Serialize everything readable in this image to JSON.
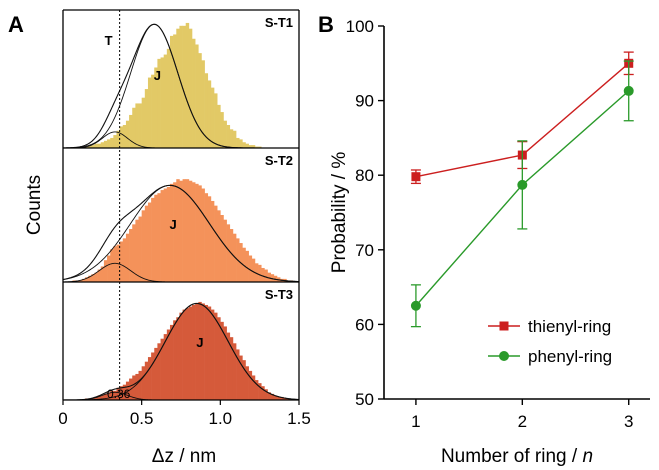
{
  "chart_data": [
    {
      "panel": "A",
      "type": "histogram",
      "xlabel": "Δz / nm",
      "ylabel": "Counts",
      "xlim": [
        0,
        1.5
      ],
      "xticks": [
        "0",
        "0.5",
        "1.0",
        "1.5"
      ],
      "vline": {
        "x": 0.36,
        "label": "0.36",
        "top_label": "T"
      },
      "gaussian_label": "J",
      "colors": {
        "axis": "#000000",
        "curve": "#111111"
      },
      "subpanels": [
        {
          "label": "S-T1",
          "color": "#E2C966",
          "bin_width": 0.02,
          "hist_start": 0.0,
          "counts": [
            0,
            0,
            0,
            0,
            0,
            1,
            1,
            1,
            2,
            2,
            3,
            3,
            4,
            5,
            6,
            7,
            9,
            12,
            15,
            16,
            19,
            23,
            28,
            31,
            31,
            35,
            41,
            49,
            51,
            56,
            62,
            63,
            65,
            69,
            78,
            79,
            83,
            85,
            85,
            87,
            83,
            76,
            72,
            66,
            61,
            52,
            47,
            42,
            38,
            30,
            25,
            19,
            16,
            13,
            12,
            7,
            6,
            4,
            3,
            2,
            2,
            1,
            1,
            0,
            0,
            0,
            0,
            0,
            0,
            0,
            0,
            0,
            0,
            0,
            0
          ],
          "gaussians": [
            {
              "amplitude": 11.2,
              "mu": 0.33,
              "sigma": 0.08
            },
            {
              "amplitude": 86.0,
              "mu": 0.58,
              "sigma": 0.15
            }
          ],
          "ymax": 96
        },
        {
          "label": "S-T2",
          "color": "#F4925A",
          "bin_width": 0.02,
          "hist_start": 0.0,
          "counts": [
            0,
            0,
            0,
            1,
            1,
            1,
            2,
            3,
            4,
            5,
            6,
            8,
            10,
            14,
            17,
            21,
            23,
            24,
            26,
            28,
            31,
            34,
            37,
            40,
            42,
            46,
            49,
            51,
            54,
            56,
            57,
            59,
            60,
            61,
            63,
            64,
            66,
            65,
            66,
            66,
            65,
            64,
            63,
            62,
            60,
            57,
            55,
            52,
            49,
            46,
            43,
            40,
            37,
            34,
            31,
            28,
            25,
            22,
            20,
            17,
            15,
            12,
            11,
            9,
            8,
            6,
            5,
            4,
            3,
            2,
            2,
            1,
            1,
            0,
            0
          ],
          "gaussians": [
            {
              "amplitude": 12.0,
              "mu": 0.33,
              "sigma": 0.1
            },
            {
              "amplitude": 62.0,
              "mu": 0.68,
              "sigma": 0.25
            }
          ],
          "ymax": 86
        },
        {
          "label": "S-T3",
          "color": "#D55A3A",
          "bin_width": 0.02,
          "hist_start": 0.1,
          "counts": [
            0,
            0,
            1,
            1,
            1,
            2,
            3,
            3,
            4,
            5,
            6,
            6,
            8,
            9,
            10,
            12,
            14,
            16,
            17,
            19,
            22,
            25,
            28,
            31,
            34,
            37,
            40,
            43,
            46,
            49,
            52,
            54,
            57,
            59,
            60,
            61,
            62,
            63,
            64,
            63,
            62,
            61,
            59,
            57,
            54,
            51,
            48,
            44,
            41,
            37,
            33,
            29,
            26,
            22,
            19,
            16,
            13,
            11,
            9,
            7,
            5,
            4,
            3,
            2,
            2,
            1,
            1,
            0,
            0,
            0
          ],
          "gaussians": [
            {
              "amplitude": 5.0,
              "mu": 0.33,
              "sigma": 0.08
            },
            {
              "amplitude": 63.0,
              "mu": 0.85,
              "sigma": 0.2
            }
          ],
          "ymax": 77
        }
      ]
    },
    {
      "panel": "B",
      "type": "line",
      "xlabel": "Number of ring / n",
      "ylabel": "Probability / %",
      "xlim": [
        0.7,
        3.2
      ],
      "ylim": [
        50,
        100
      ],
      "x": [
        1,
        2,
        3
      ],
      "xticks": [
        "1",
        "2",
        "3"
      ],
      "yticks": [
        "50",
        "60",
        "70",
        "80",
        "90",
        "100"
      ],
      "legend_position": "bottom-right",
      "series": [
        {
          "name": "thienyl-ring",
          "marker": "square",
          "color": "#CC1F1F",
          "values": [
            79.8,
            82.7,
            95.0
          ],
          "errors": [
            0.9,
            1.8,
            1.5
          ]
        },
        {
          "name": "phenyl-ring",
          "marker": "circle",
          "color": "#2A9A2A",
          "values": [
            62.5,
            78.7,
            91.3
          ],
          "errors": [
            2.8,
            5.9,
            4.0
          ]
        }
      ]
    }
  ]
}
